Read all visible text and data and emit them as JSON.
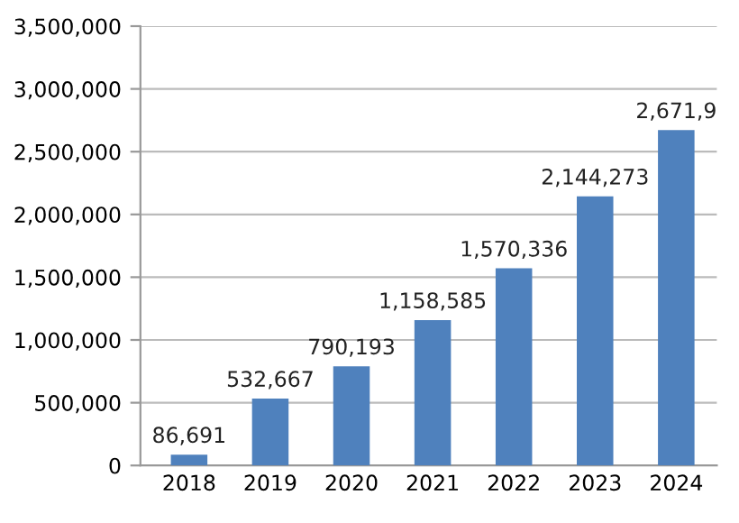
{
  "chart_data": {
    "type": "bar",
    "categories": [
      "2018",
      "2019",
      "2020",
      "2021",
      "2022",
      "2023",
      "2024"
    ],
    "values": [
      86691,
      532667,
      790193,
      1158585,
      1570336,
      2144273,
      2671900
    ],
    "value_labels": [
      "86,691",
      "532,667",
      "790,193",
      "1,158,585",
      "1,570,336",
      "2,144,273",
      "2,671,9"
    ],
    "color": "#4f81bd",
    "ylim": [
      0,
      3500000
    ],
    "yticks": [
      {
        "value": 0,
        "label": "0"
      },
      {
        "value": 500000,
        "label": "500,000"
      },
      {
        "value": 1000000,
        "label": "1,000,000"
      },
      {
        "value": 1500000,
        "label": "1,500,000"
      },
      {
        "value": 2000000,
        "label": "2,000,000"
      },
      {
        "value": 2500000,
        "label": "2,500,000"
      },
      {
        "value": 3000000,
        "label": "3,000,000"
      },
      {
        "value": 3500000,
        "label": "3,500,000"
      }
    ],
    "grid": "y"
  }
}
